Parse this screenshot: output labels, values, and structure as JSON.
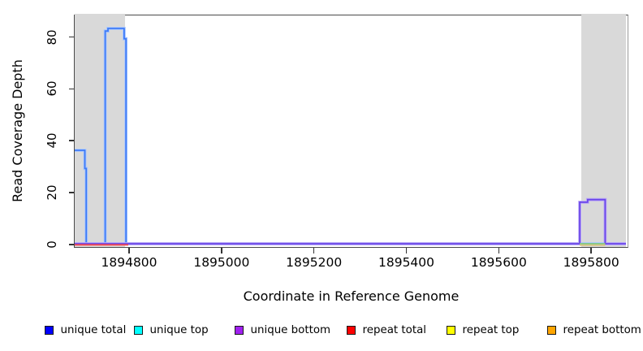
{
  "chart_data": {
    "type": "line",
    "subtype": "step-coverage-plot",
    "title": "",
    "xlabel": "Coordinate in Reference Genome",
    "ylabel": "Read Coverage Depth",
    "xlim": [
      1894684,
      1895877
    ],
    "ylim": [
      0,
      88
    ],
    "x_ticks": [
      1894800,
      1895000,
      1895200,
      1895400,
      1895600,
      1895800
    ],
    "y_ticks": [
      0,
      20,
      40,
      60,
      80
    ],
    "grid": false,
    "legend_position": "bottom",
    "shaded_regions": [
      {
        "x0": 1894684,
        "x1": 1894793,
        "color": "#d9d9d9"
      },
      {
        "x0": 1895779,
        "x1": 1895877,
        "color": "#d9d9d9"
      }
    ],
    "series": [
      {
        "name": "unique total",
        "legend_color": "#0000ff",
        "line_color": "#3f7bf6",
        "halo_color": "#a9c7ff",
        "points": [
          [
            1894684,
            36
          ],
          [
            1894706,
            36
          ],
          [
            1894706,
            29
          ],
          [
            1894709,
            29
          ],
          [
            1894709,
            0
          ],
          [
            1894750,
            0
          ],
          [
            1894750,
            82
          ],
          [
            1894756,
            82
          ],
          [
            1894756,
            83
          ],
          [
            1894791,
            83
          ],
          [
            1894791,
            79
          ],
          [
            1894795,
            79
          ],
          [
            1894795,
            0
          ],
          [
            1895877,
            0
          ]
        ]
      },
      {
        "name": "unique top",
        "legend_color": "#00ffff",
        "points": [
          [
            1894684,
            0
          ],
          [
            1895877,
            0
          ]
        ]
      },
      {
        "name": "unique bottom",
        "legend_color": "#a020f0",
        "line_color": "#6a46e8",
        "halo_color": "#bba8f8",
        "points": [
          [
            1894684,
            0
          ],
          [
            1895777,
            0
          ],
          [
            1895777,
            16
          ],
          [
            1895794,
            16
          ],
          [
            1895794,
            17
          ],
          [
            1895832,
            17
          ],
          [
            1895832,
            0
          ],
          [
            1895877,
            0
          ]
        ]
      },
      {
        "name": "repeat total",
        "legend_color": "#ff0000",
        "points": [
          [
            1894684,
            0
          ],
          [
            1895877,
            0
          ]
        ]
      },
      {
        "name": "repeat top",
        "legend_color": "#ffff00",
        "points": [
          [
            1894684,
            0
          ],
          [
            1895877,
            0
          ]
        ]
      },
      {
        "name": "repeat bottom",
        "legend_color": "#ffa500",
        "points": [
          [
            1894684,
            0
          ],
          [
            1895877,
            0
          ]
        ]
      }
    ],
    "baseline_overlays": [
      {
        "x0": 1894684,
        "x1": 1894800,
        "color": "#ff4545",
        "dy": 1.4
      },
      {
        "x0": 1895777,
        "x1": 1895832,
        "color": "#86d07e",
        "dy": 0
      },
      {
        "x0": 1895777,
        "x1": 1895832,
        "color": "#d9c47e",
        "dy": 1.7
      }
    ],
    "legend": [
      {
        "label": "unique total",
        "color": "#0000ff"
      },
      {
        "label": "unique top",
        "color": "#00ffff"
      },
      {
        "label": "unique bottom",
        "color": "#a020f0"
      },
      {
        "label": "repeat total",
        "color": "#ff0000"
      },
      {
        "label": "repeat top",
        "color": "#ffff00"
      },
      {
        "label": "repeat bottom",
        "color": "#ffa500"
      }
    ]
  }
}
